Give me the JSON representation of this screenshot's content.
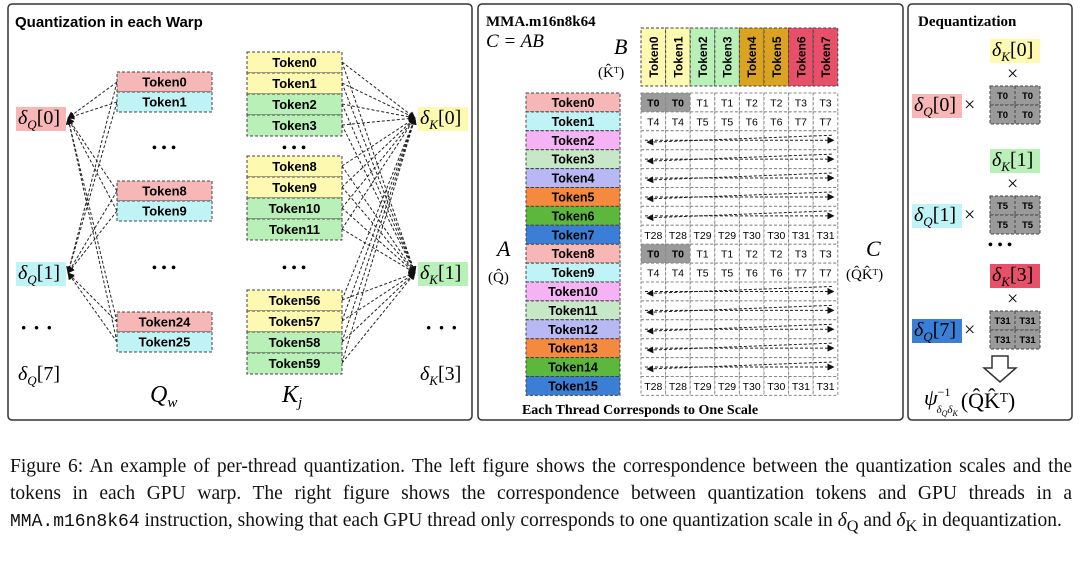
{
  "left": {
    "title": "Quantization in each Warp",
    "q_tokens": [
      "Token0",
      "Token1",
      "Token8",
      "Token9",
      "Token24",
      "Token25"
    ],
    "k_tokens": [
      "Token0",
      "Token1",
      "Token2",
      "Token3",
      "Token8",
      "Token9",
      "Token10",
      "Token11",
      "Token56",
      "Token57",
      "Token58",
      "Token59"
    ],
    "q_scales": [
      {
        "sym": "δ",
        "sub": "Q",
        "idx": "[0]"
      },
      {
        "sym": "δ",
        "sub": "Q",
        "idx": "[1]"
      },
      {
        "sym": "δ",
        "sub": "Q",
        "idx": "[7]"
      }
    ],
    "k_scales": [
      {
        "sym": "δ",
        "sub": "K",
        "idx": "[0]"
      },
      {
        "sym": "δ",
        "sub": "K",
        "idx": "[1]"
      },
      {
        "sym": "δ",
        "sub": "K",
        "idx": "[3]"
      }
    ],
    "dots": "• • •",
    "side_dots": "· · ·",
    "q_label": {
      "base": "Q",
      "sub": "w"
    },
    "k_label": {
      "base": "K",
      "sub": "j"
    }
  },
  "middle": {
    "title": "MMA.m16n8k64",
    "equation": "C = AB",
    "b_label": "B",
    "b_sub": "(K̂ᵀ)",
    "b_tokens": [
      "Token0",
      "Token1",
      "Token2",
      "Token3",
      "Token4",
      "Token5",
      "Token6",
      "Token7"
    ],
    "a_label": "A",
    "a_sub": "(Q̂)",
    "a_tokens": [
      "Token0",
      "Token1",
      "Token2",
      "Token3",
      "Token4",
      "Token5",
      "Token6",
      "Token7",
      "Token8",
      "Token9",
      "Token10",
      "Token11",
      "Token12",
      "Token13",
      "Token14",
      "Token15"
    ],
    "c_label": "C",
    "c_sub": "(Q̂K̂ᵀ)",
    "grid_rows": [
      [
        "T0",
        "T0",
        "T1",
        "T1",
        "T2",
        "T2",
        "T3",
        "T3"
      ],
      [
        "T4",
        "T4",
        "T5",
        "T5",
        "T6",
        "T6",
        "T7",
        "T7"
      ],
      null,
      null,
      null,
      null,
      null,
      [
        "T28",
        "T28",
        "T29",
        "T29",
        "T30",
        "T30",
        "T31",
        "T31"
      ],
      [
        "T0",
        "T0",
        "T1",
        "T1",
        "T2",
        "T2",
        "T3",
        "T3"
      ],
      [
        "T4",
        "T4",
        "T5",
        "T5",
        "T6",
        "T6",
        "T7",
        "T7"
      ],
      null,
      null,
      null,
      null,
      null,
      [
        "T28",
        "T28",
        "T29",
        "T29",
        "T30",
        "T30",
        "T31",
        "T31"
      ]
    ],
    "footer": "Each Thread Corresponds to One Scale"
  },
  "right": {
    "title": "Dequantization",
    "times": "×",
    "dots": "• • •",
    "items": [
      {
        "k_scale": {
          "sym": "δ",
          "sub": "K",
          "idx": "[0]"
        },
        "q_scale": {
          "sym": "δ",
          "sub": "Q",
          "idx": "[0]"
        },
        "tile": [
          "T0",
          "T0",
          "T0",
          "T0"
        ]
      },
      {
        "k_scale": {
          "sym": "δ",
          "sub": "K",
          "idx": "[1]"
        },
        "q_scale": {
          "sym": "δ",
          "sub": "Q",
          "idx": "[1]"
        },
        "tile": [
          "T5",
          "T5",
          "T5",
          "T5"
        ]
      },
      {
        "k_scale": {
          "sym": "δ",
          "sub": "K",
          "idx": "[3]"
        },
        "q_scale": {
          "sym": "δ",
          "sub": "Q",
          "idx": "[7]"
        },
        "tile": [
          "T31",
          "T31",
          "T31",
          "T31"
        ]
      }
    ],
    "result": {
      "base": "ψ",
      "sup": "−1",
      "sub": [
        "δ",
        "Q",
        "δ",
        "K"
      ],
      "arg": "(Q̂K̂ᵀ)"
    }
  },
  "caption": {
    "p1": "Figure 6: An example of per-thread quantization. The left figure shows the correspondence between the quantization scales and the tokens in each GPU warp. The right figure shows the correspondence between quantization tokens and GPU threads in a ",
    "code": "MMA.m16n8k64",
    "p2": " instruction, showing that each GPU thread only corresponds to one quantization scale in ",
    "s1": "δ",
    "s1sub": "Q",
    "p3": " and ",
    "s2": "δ",
    "s2sub": "K",
    "p4": " in dequantization."
  }
}
